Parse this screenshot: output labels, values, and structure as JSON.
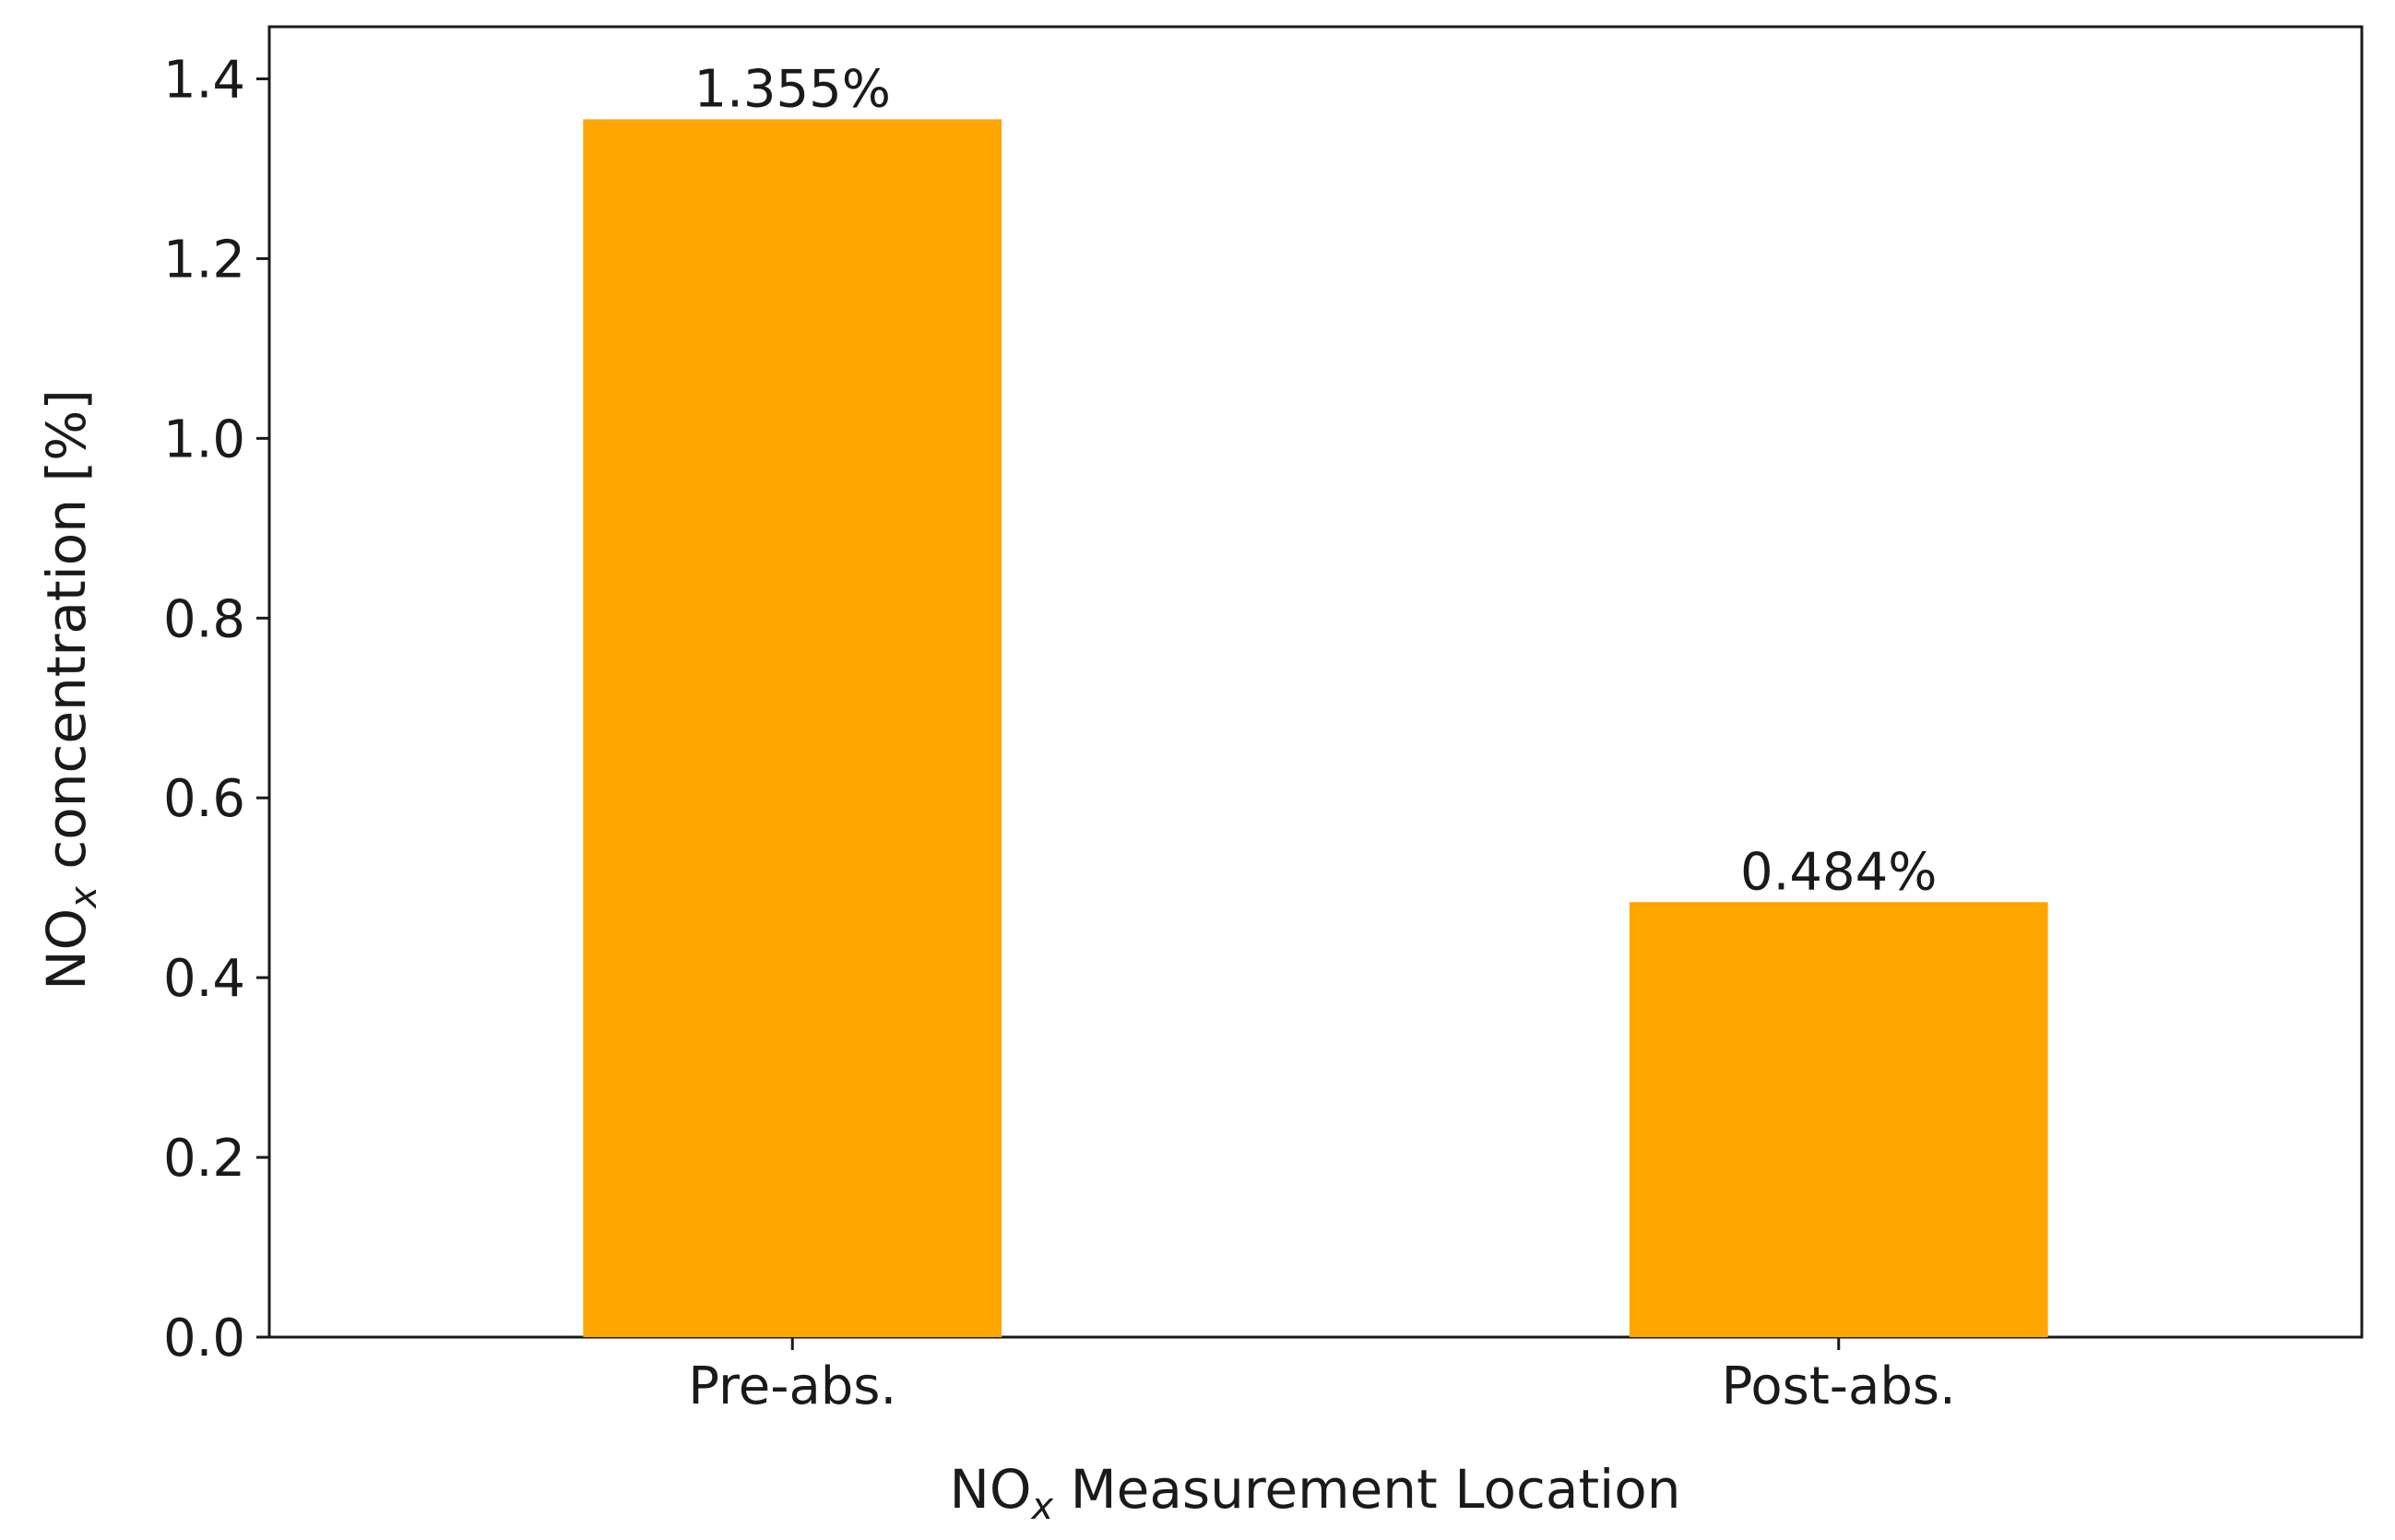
{
  "chart_data": {
    "type": "bar",
    "categories": [
      "Pre-abs.",
      "Post-abs."
    ],
    "values": [
      1.355,
      0.484
    ],
    "data_labels": [
      "1.355%",
      "0.484%"
    ],
    "title": "",
    "xlabel": "NOx Measurement Location",
    "xlabel_base": "NO",
    "xlabel_sub": "x",
    "xlabel_rest": " Measurement Location",
    "ylabel": "NOx concentration [%]",
    "ylabel_base": "NO",
    "ylabel_sub": "x",
    "ylabel_rest": " concentration [%]",
    "ylim": [
      0,
      1.458
    ],
    "yticks": [
      0.0,
      0.2,
      0.4,
      0.6,
      0.8,
      1.0,
      1.2,
      1.4
    ],
    "ytick_labels": [
      "0.0",
      "0.2",
      "0.4",
      "0.6",
      "0.8",
      "1.0",
      "1.2",
      "1.4"
    ],
    "grid": false,
    "legend": false,
    "bar_color": "#FFA500"
  }
}
